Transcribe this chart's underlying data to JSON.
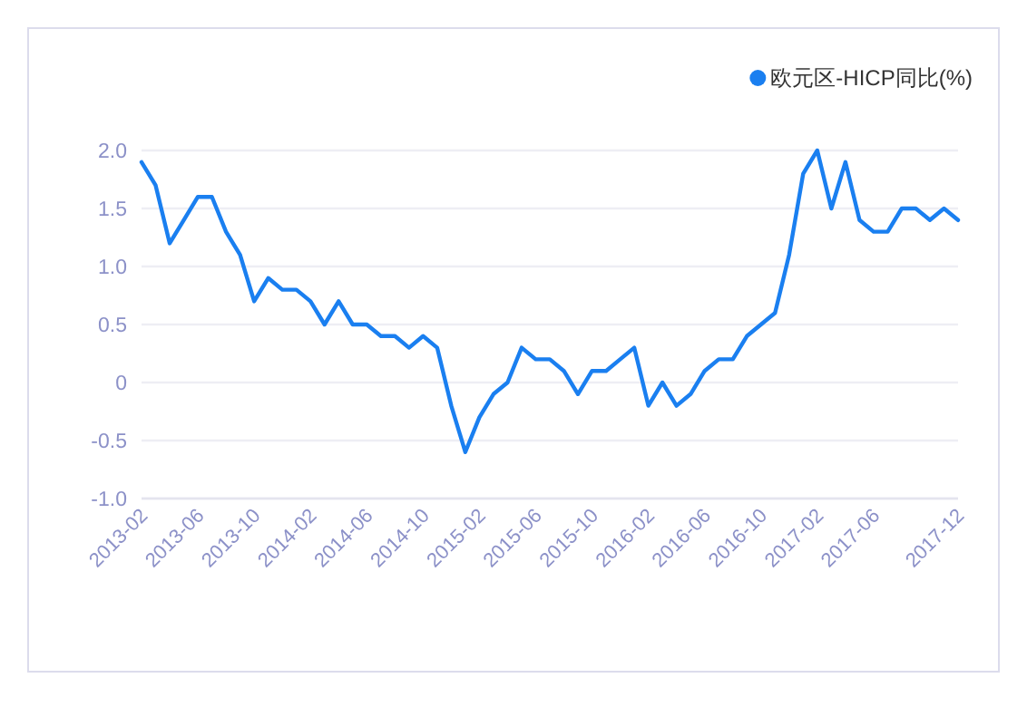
{
  "chart_data": {
    "type": "line",
    "categories": [
      "2013-02",
      null,
      null,
      null,
      "2013-06",
      null,
      null,
      null,
      "2013-10",
      null,
      null,
      null,
      "2014-02",
      null,
      null,
      null,
      "2014-06",
      null,
      null,
      null,
      "2014-10",
      null,
      null,
      null,
      "2015-02",
      null,
      null,
      null,
      "2015-06",
      null,
      null,
      null,
      "2015-10",
      null,
      null,
      null,
      "2016-02",
      null,
      null,
      null,
      "2016-06",
      null,
      null,
      null,
      "2016-10",
      null,
      null,
      null,
      "2017-02",
      null,
      null,
      null,
      "2017-06",
      null,
      null,
      null,
      null,
      null,
      "2017-12"
    ],
    "series": [
      {
        "name": "欧元区-HICP同比(%)",
        "color": "#1a7ff0",
        "values": [
          1.9,
          1.7,
          1.2,
          1.4,
          1.6,
          1.6,
          1.3,
          1.1,
          0.7,
          0.9,
          0.8,
          0.8,
          0.7,
          0.5,
          0.7,
          0.5,
          0.5,
          0.4,
          0.4,
          0.3,
          0.4,
          0.3,
          -0.2,
          -0.6,
          -0.3,
          -0.1,
          0.0,
          0.3,
          0.2,
          0.2,
          0.1,
          -0.1,
          0.1,
          0.1,
          0.2,
          0.3,
          -0.2,
          0.0,
          -0.2,
          -0.1,
          0.1,
          0.2,
          0.2,
          0.4,
          0.5,
          0.6,
          1.1,
          1.8,
          2.0,
          1.5,
          1.9,
          1.4,
          1.3,
          1.3,
          1.5,
          1.5,
          1.4,
          1.5,
          1.4
        ]
      }
    ],
    "ylim": [
      -1,
      2
    ],
    "yticks": [
      {
        "value": -1,
        "label": "-1.0"
      },
      {
        "value": -0.5,
        "label": "-0.5"
      },
      0,
      {
        "value": 0.5,
        "label": "0.5"
      },
      {
        "value": 1,
        "label": "1.0"
      },
      {
        "value": 1.5,
        "label": "1.5"
      },
      {
        "value": 2,
        "label": "2.0"
      }
    ],
    "grid": "y",
    "legend": "top right"
  }
}
